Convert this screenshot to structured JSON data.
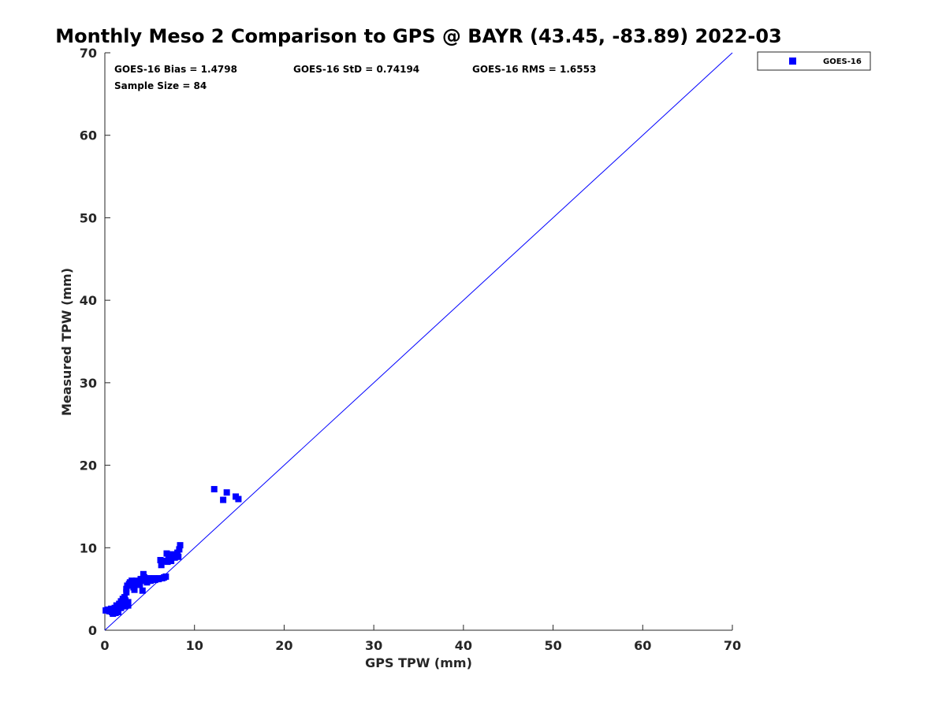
{
  "chart_data": {
    "type": "scatter",
    "title": "Monthly Meso 2 Comparison to GPS @ BAYR (43.45, -83.89) 2022-03",
    "xlabel": "GPS TPW (mm)",
    "ylabel": "Measured TPW (mm)",
    "xlim": [
      0,
      70
    ],
    "ylim": [
      0,
      70
    ],
    "xticks": [
      0,
      10,
      20,
      30,
      40,
      50,
      60,
      70
    ],
    "yticks": [
      0,
      10,
      20,
      30,
      40,
      50,
      60,
      70
    ],
    "grid": false,
    "legend_position": "outside-top-right",
    "reference_line": {
      "x": [
        0,
        70
      ],
      "y": [
        0,
        70
      ],
      "color": "#0000ff"
    },
    "series": [
      {
        "name": "GOES-16",
        "color": "#0000ff",
        "marker": "square",
        "x": [
          0.1,
          0.3,
          0.5,
          0.7,
          0.8,
          0.9,
          1.0,
          1.1,
          1.2,
          1.3,
          1.4,
          1.5,
          1.6,
          1.7,
          1.8,
          1.9,
          2.0,
          2.1,
          2.2,
          2.3,
          2.4,
          2.5,
          2.6,
          2.7,
          2.8,
          2.9,
          3.0,
          3.1,
          3.2,
          3.3,
          3.5,
          3.7,
          3.9,
          4.0,
          4.2,
          4.3,
          4.4,
          4.5,
          4.7,
          4.9,
          5.1,
          5.3,
          5.5,
          5.8,
          6.0,
          6.2,
          6.3,
          6.4,
          6.5,
          6.6,
          6.8,
          6.9,
          7.0,
          7.1,
          7.2,
          7.4,
          7.6,
          7.8,
          8.0,
          8.1,
          8.2,
          8.3,
          8.4,
          12.2,
          13.2,
          13.6,
          14.6,
          14.9,
          1.0,
          1.3,
          1.5,
          1.8,
          2.0,
          2.2,
          2.4,
          2.6,
          3.4,
          3.9,
          4.1,
          4.8,
          5.6,
          6.1,
          7.3,
          7.9
        ],
        "y": [
          2.4,
          2.5,
          2.3,
          2.6,
          2.2,
          2.0,
          2.4,
          2.7,
          2.1,
          3.0,
          2.5,
          2.2,
          3.2,
          2.8,
          3.5,
          3.1,
          3.8,
          3.3,
          4.0,
          3.6,
          5.0,
          5.4,
          3.4,
          5.6,
          5.8,
          5.5,
          6.0,
          5.7,
          5.2,
          4.9,
          6.0,
          5.6,
          5.9,
          6.2,
          4.8,
          6.8,
          6.4,
          6.1,
          5.8,
          6.3,
          6.0,
          6.2,
          6.3,
          6.2,
          6.2,
          8.5,
          7.9,
          6.3,
          8.4,
          6.4,
          6.5,
          9.3,
          8.3,
          8.6,
          8.9,
          8.4,
          9.2,
          8.8,
          9.0,
          9.4,
          8.9,
          9.8,
          10.3,
          17.1,
          15.8,
          16.7,
          16.2,
          15.9,
          2.1,
          2.6,
          2.9,
          2.7,
          3.3,
          2.9,
          4.6,
          3.0,
          5.7,
          5.5,
          6.0,
          6.0,
          6.1,
          6.3,
          8.5,
          9.1
        ]
      }
    ],
    "annotations": [
      {
        "text": "GOES-16 Bias = 1.4798"
      },
      {
        "text": "GOES-16 StD = 0.74194"
      },
      {
        "text": "GOES-16 RMS = 1.6553"
      },
      {
        "text": "Sample Size = 84"
      }
    ]
  }
}
